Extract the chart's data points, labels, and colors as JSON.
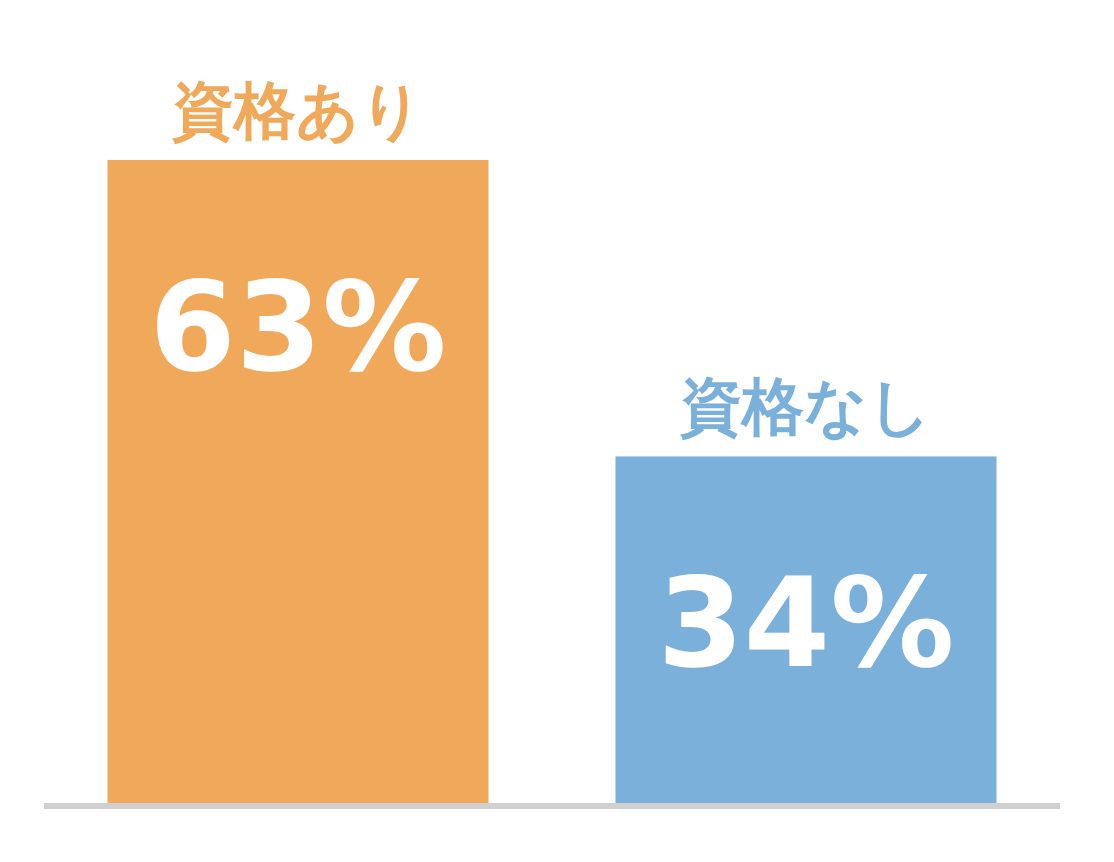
{
  "chart_data": {
    "type": "bar",
    "categories": [
      "資格あり",
      "資格なし"
    ],
    "values": [
      63,
      34
    ],
    "colors": [
      "#f0a85a",
      "#7ab0d9"
    ],
    "value_labels": [
      "63%",
      "34%"
    ]
  }
}
